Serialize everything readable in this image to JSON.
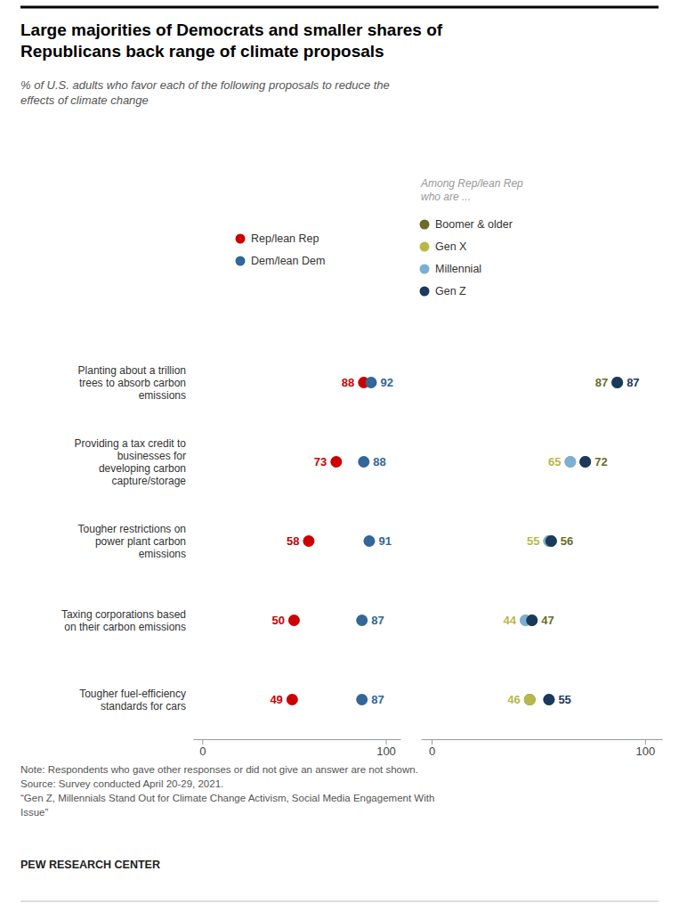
{
  "chart_data": [
    {
      "type": "dot",
      "orientation": "horizontal",
      "title": "Large majorities of Democrats and smaller shares of\nRepublicans back range of climate proposals",
      "subtitle": "% of U.S. adults who favor each of the following proposals to reduce the\neffects of climate change",
      "annotations": [
        "Note: Respondents who gave other responses or did not give an answer are not shown.\nSource: Survey conducted April 20-29, 2021.\n“Gen Z, Millennials Stand Out for Climate Change Activism, Social Media Engagement With\nIssue”",
        "PEW RESEARCH CENTER"
      ],
      "categories": [
        "Planting about a trillion\ntrees to absorb carbon\nemissions",
        "Providing a tax credit to\nbusinesses for\ndeveloping carbon\ncapture/storage",
        "Tougher restrictions on\npower plant carbon\nemissions",
        "Taxing corporations based\non their carbon emissions",
        "Tougher fuel-efficiency\nstandards for cars"
      ],
      "series": [
        {
          "name": "Rep/lean Rep",
          "color": "#CC0000",
          "values": [
            88,
            73,
            58,
            50,
            49
          ]
        },
        {
          "name": "Dem/lean Dem",
          "color": "#336699",
          "values": [
            92,
            88,
            91,
            87,
            87
          ]
        }
      ],
      "xlim": [
        -5,
        108
      ],
      "xticks": [
        0,
        100
      ],
      "data_labels": true,
      "legend": "top"
    },
    {
      "type": "dot",
      "orientation": "horizontal",
      "title": "Among Rep/lean Rep\nwho are ...",
      "categories": [
        null,
        null,
        null,
        null,
        null
      ],
      "series": [
        {
          "name": "Boomer & older",
          "color": "#6B6B2A",
          "values": [
            87,
            72,
            56,
            47,
            46
          ],
          "value_labels": [
            "87",
            "72",
            "56",
            "47",
            null
          ]
        },
        {
          "name": "Gen X",
          "color": "#B8B84A",
          "values": [
            87,
            65,
            55,
            44,
            46
          ],
          "value_labels": [
            null,
            "65",
            "55",
            "44",
            "46"
          ]
        },
        {
          "name": "Millennial",
          "color": "#7BAFD4",
          "values": [
            87,
            65,
            55,
            44,
            55
          ],
          "value_labels": [
            null,
            null,
            null,
            null,
            null
          ]
        },
        {
          "name": "Gen Z",
          "color": "#1A3A5C",
          "values": [
            87,
            72,
            56,
            47,
            55
          ],
          "value_labels": [
            "87",
            null,
            null,
            null,
            "55"
          ]
        }
      ],
      "xlim": [
        -5,
        108
      ],
      "xticks": [
        0,
        100
      ],
      "data_labels": true,
      "tick_labels": "x",
      "legend": "top"
    }
  ]
}
